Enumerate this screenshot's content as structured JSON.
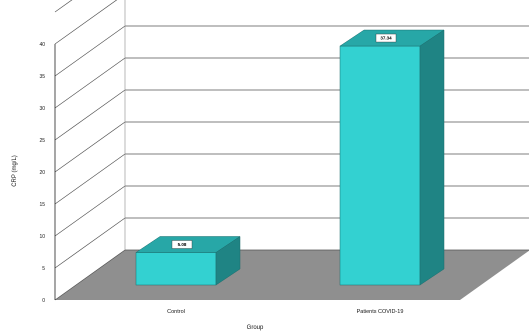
{
  "chart_data": {
    "type": "bar",
    "categories": [
      "Control",
      "Patients COVID-19"
    ],
    "values": [
      5.08,
      37.34
    ],
    "value_labels": [
      "5.08",
      "37.34"
    ],
    "xlabel": "Group",
    "ylabel": "CRP (mg/L)",
    "ylim": [
      0,
      45
    ],
    "yticks": [
      "0",
      "5",
      "10",
      "15",
      "20",
      "25",
      "30",
      "35",
      "40"
    ],
    "ytick_values": [
      0,
      5,
      10,
      15,
      20,
      25,
      30,
      35,
      40
    ],
    "grid": true,
    "style": "3d",
    "colors": {
      "bar_front": "#33d1d1",
      "bar_top": "#27a7a7",
      "bar_side": "#1f8484",
      "floor": "#8f8f8f",
      "grid": "#555555"
    }
  }
}
